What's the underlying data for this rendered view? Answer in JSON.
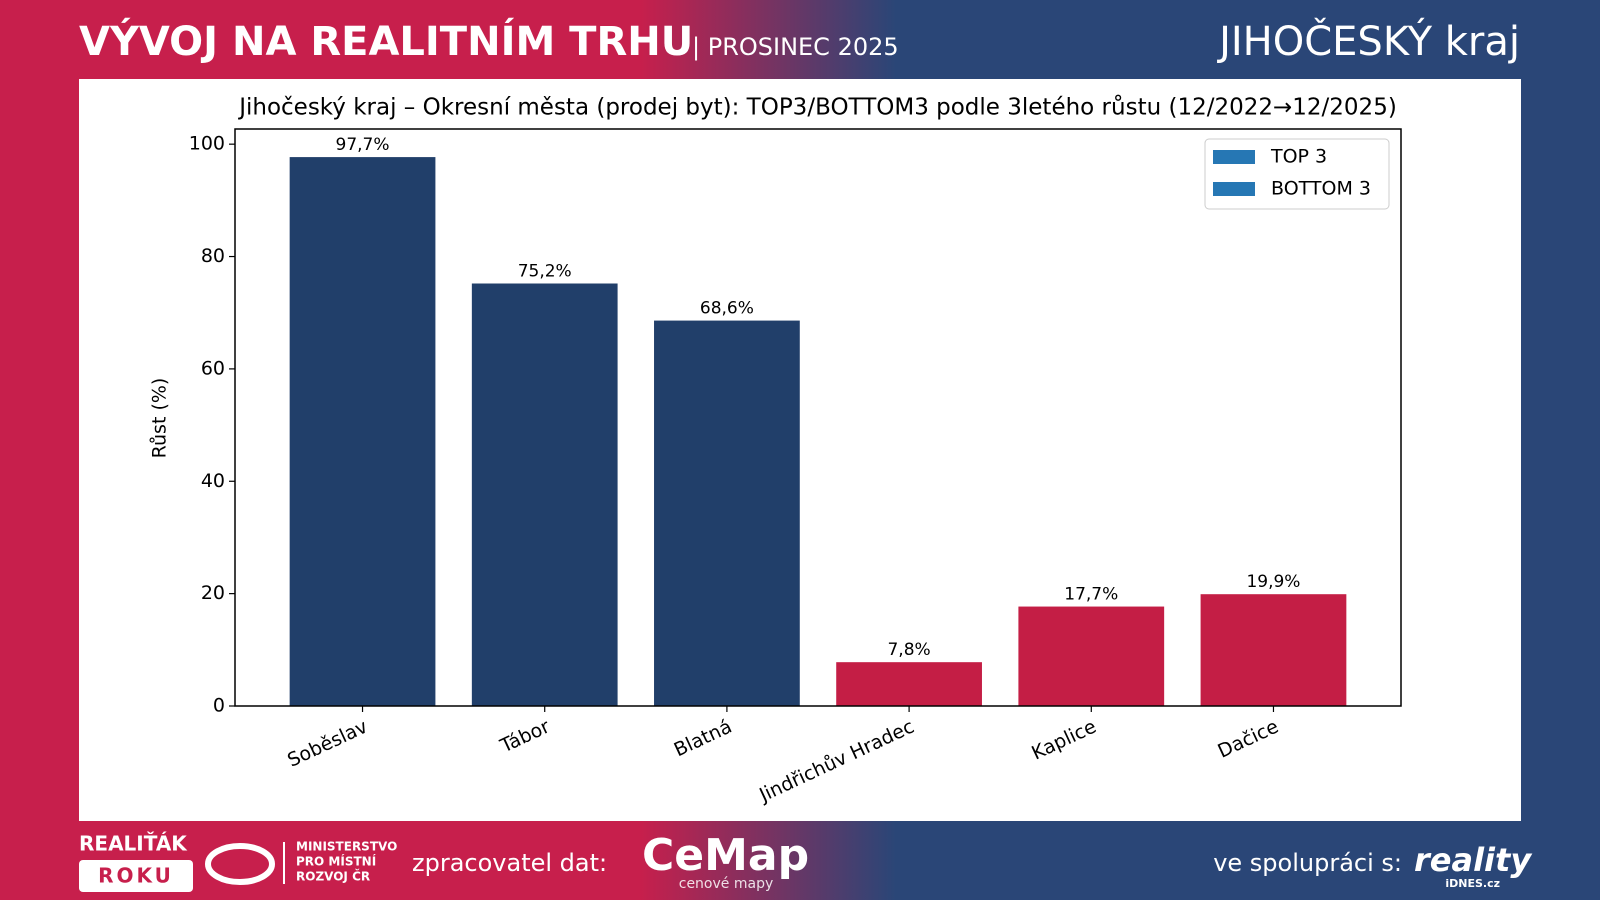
{
  "header": {
    "title": "VÝVOJ NA REALITNÍM TRHU",
    "subtitle": "| PROSINEC 2025",
    "region": "JIHOČESKÝ kraj"
  },
  "chart_data": {
    "type": "bar",
    "title": "Jihočeský kraj – Okresní města (prodej byt): TOP3/BOTTOM3 podle 3letého růstu (12/2022→12/2025)",
    "y_label": "Růst (%)",
    "categories": [
      "Soběslav",
      "Tábor",
      "Blatná",
      "Jindřichův Hradec",
      "Kaplice",
      "Dačice"
    ],
    "series": [
      {
        "name": "TOP 3",
        "color": "#213f6a",
        "values": [
          97.7,
          75.2,
          68.6,
          null,
          null,
          null
        ],
        "value_labels": [
          "97,7%",
          "75,2%",
          "68,6%",
          null,
          null,
          null
        ]
      },
      {
        "name": "BOTTOM 3",
        "color": "#c41e45",
        "values": [
          null,
          null,
          null,
          7.8,
          17.7,
          19.9
        ],
        "value_labels": [
          null,
          null,
          null,
          "7,8%",
          "17,7%",
          "19,9%"
        ]
      }
    ],
    "legend_color": "#2677b4",
    "legend_loc": "upper right",
    "ylim": [
      0,
      102.7
    ],
    "yticks": [
      0,
      20,
      40,
      60,
      80,
      100
    ]
  },
  "footer": {
    "award_1": "REALIŤÁK",
    "award_2": "ROKU",
    "ministry": [
      "MINISTERSTVO",
      "PRO MÍSTNÍ",
      "ROZVOJ ČR"
    ],
    "processor": "zpracovatel dat:",
    "cemap": "CeMap",
    "cemap_sub": "cenové mapy",
    "partner": "ve spolupráci s:",
    "reality": "reality",
    "idnes": "iDNES.cz"
  }
}
